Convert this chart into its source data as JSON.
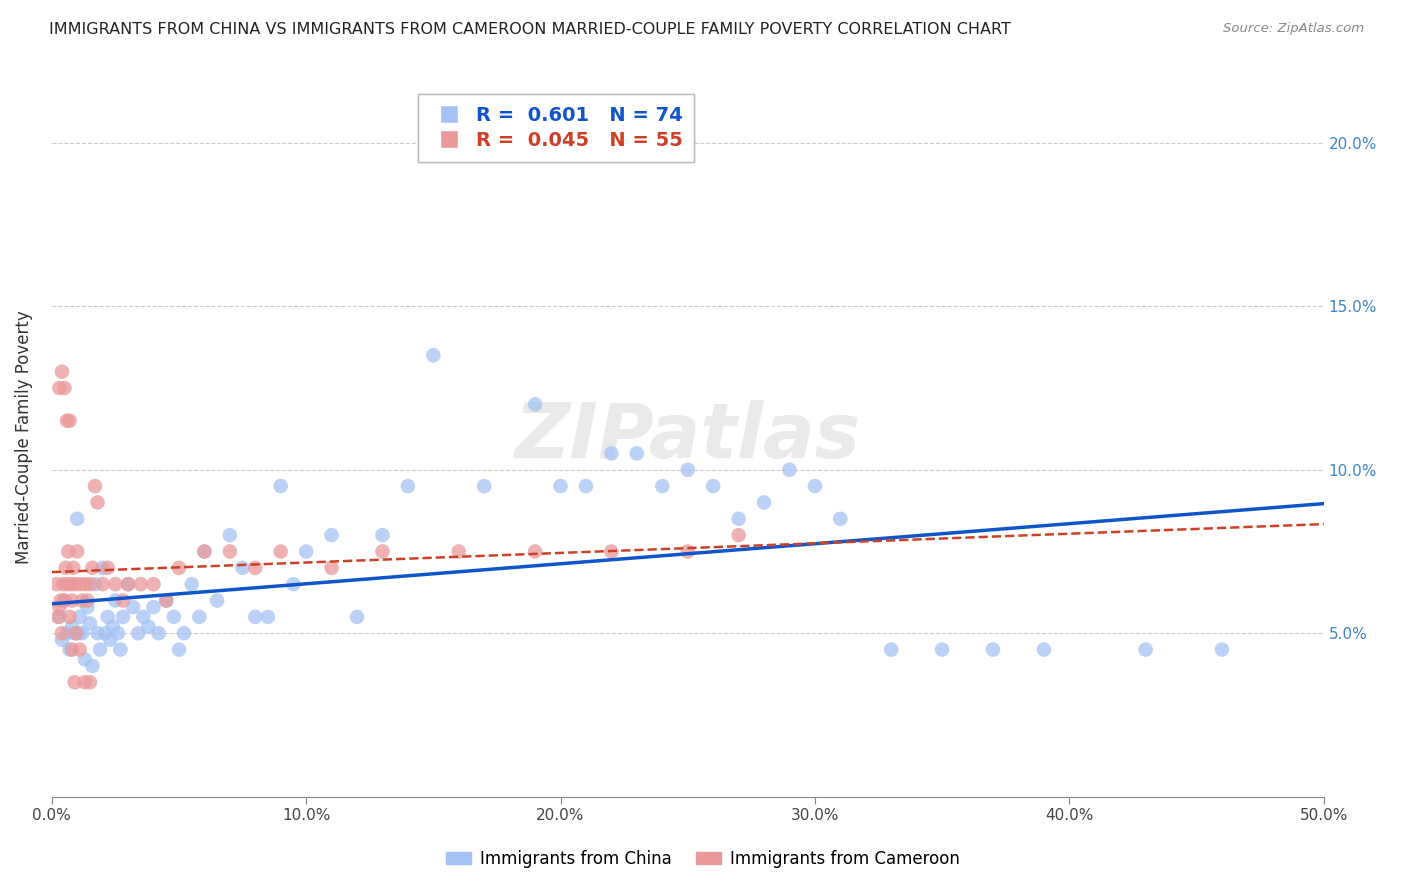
{
  "title": "IMMIGRANTS FROM CHINA VS IMMIGRANTS FROM CAMEROON MARRIED-COUPLE FAMILY POVERTY CORRELATION CHART",
  "source": "Source: ZipAtlas.com",
  "ylabel": "Married-Couple Family Poverty",
  "xlim": [
    0,
    50
  ],
  "ylim": [
    0,
    22
  ],
  "xticks": [
    0,
    10,
    20,
    30,
    40,
    50
  ],
  "xticklabels": [
    "0.0%",
    "10.0%",
    "20.0%",
    "30.0%",
    "40.0%",
    "50.0%"
  ],
  "yticks_right": [
    5,
    10,
    15,
    20
  ],
  "yticklabels_right": [
    "5.0%",
    "10.0%",
    "15.0%",
    "20.0%"
  ],
  "china_color": "#a4c2f4",
  "cameroon_color": "#ea9999",
  "china_line_color": "#1155cc",
  "cameroon_line_color": "#cc4125",
  "watermark": "ZIPatlas",
  "china_R": 0.601,
  "china_N": 74,
  "cameroon_R": 0.045,
  "cameroon_N": 55,
  "china_scatter_x": [
    0.3,
    0.4,
    0.5,
    0.6,
    0.7,
    0.8,
    1.0,
    1.1,
    1.2,
    1.3,
    1.4,
    1.5,
    1.6,
    1.7,
    1.8,
    1.9,
    2.0,
    2.1,
    2.2,
    2.3,
    2.4,
    2.5,
    2.6,
    2.7,
    2.8,
    3.0,
    3.2,
    3.4,
    3.6,
    3.8,
    4.0,
    4.2,
    4.5,
    4.8,
    5.0,
    5.2,
    5.5,
    5.8,
    6.0,
    6.5,
    7.0,
    7.5,
    8.0,
    8.5,
    9.0,
    9.5,
    10.0,
    11.0,
    12.0,
    13.0,
    14.0,
    15.0,
    17.0,
    19.0,
    21.0,
    23.0,
    25.0,
    27.0,
    29.0,
    31.0,
    20.0,
    22.0,
    24.0,
    26.0,
    28.0,
    30.0,
    33.0,
    35.0,
    37.0,
    39.0,
    43.0,
    46.0,
    0.9,
    1.05
  ],
  "china_scatter_y": [
    5.5,
    4.8,
    6.0,
    5.0,
    4.5,
    5.2,
    8.5,
    5.5,
    5.0,
    4.2,
    5.8,
    5.3,
    4.0,
    6.5,
    5.0,
    4.5,
    7.0,
    5.0,
    5.5,
    4.8,
    5.2,
    6.0,
    5.0,
    4.5,
    5.5,
    6.5,
    5.8,
    5.0,
    5.5,
    5.2,
    5.8,
    5.0,
    6.0,
    5.5,
    4.5,
    5.0,
    6.5,
    5.5,
    7.5,
    6.0,
    8.0,
    7.0,
    5.5,
    5.5,
    9.5,
    6.5,
    7.5,
    8.0,
    5.5,
    8.0,
    9.5,
    13.5,
    9.5,
    12.0,
    9.5,
    10.5,
    10.0,
    8.5,
    10.0,
    8.5,
    9.5,
    10.5,
    9.5,
    9.5,
    9.0,
    9.5,
    4.5,
    4.5,
    4.5,
    4.5,
    4.5,
    4.5,
    5.0,
    5.0
  ],
  "cameroon_scatter_x": [
    0.2,
    0.25,
    0.3,
    0.35,
    0.4,
    0.45,
    0.5,
    0.55,
    0.6,
    0.65,
    0.7,
    0.75,
    0.8,
    0.85,
    0.9,
    0.95,
    1.0,
    1.1,
    1.2,
    1.3,
    1.4,
    1.5,
    1.6,
    1.7,
    1.8,
    2.0,
    2.2,
    2.5,
    2.8,
    3.0,
    3.5,
    4.0,
    4.5,
    5.0,
    6.0,
    7.0,
    8.0,
    9.0,
    11.0,
    13.0,
    16.0,
    19.0,
    22.0,
    25.0,
    27.0,
    0.3,
    0.4,
    0.5,
    0.6,
    0.7,
    0.8,
    0.9,
    1.1,
    1.3,
    1.5
  ],
  "cameroon_scatter_y": [
    6.5,
    5.5,
    5.8,
    6.0,
    5.0,
    6.5,
    6.0,
    7.0,
    6.5,
    7.5,
    5.5,
    6.5,
    6.0,
    7.0,
    6.5,
    5.0,
    7.5,
    6.5,
    6.0,
    6.5,
    6.0,
    6.5,
    7.0,
    9.5,
    9.0,
    6.5,
    7.0,
    6.5,
    6.0,
    6.5,
    6.5,
    6.5,
    6.0,
    7.0,
    7.5,
    7.5,
    7.0,
    7.5,
    7.0,
    7.5,
    7.5,
    7.5,
    7.5,
    7.5,
    8.0,
    12.5,
    13.0,
    12.5,
    11.5,
    11.5,
    4.5,
    3.5,
    4.5,
    3.5,
    3.5
  ]
}
